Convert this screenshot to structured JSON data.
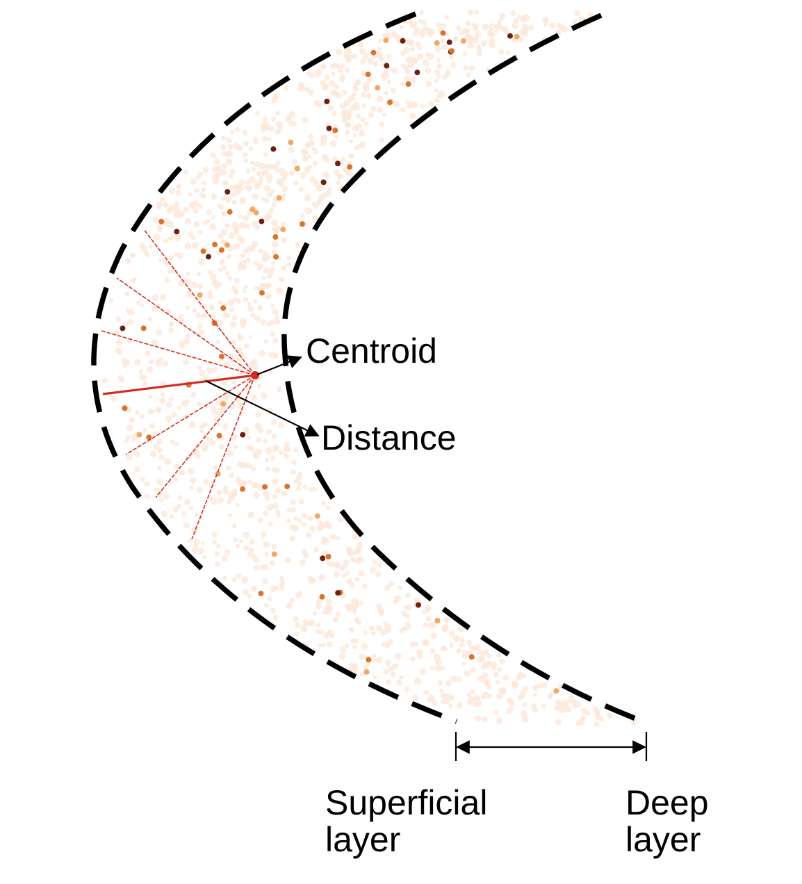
{
  "labels": {
    "centroid": "Centroid",
    "distance": "Distance",
    "superficial_line1": "Superficial",
    "superficial_line2": "layer",
    "deep_line1": "Deep",
    "deep_line2": "layer"
  },
  "colors": {
    "boundary": "#000000",
    "rays": "#d42a20",
    "centroid": "#d42a20",
    "background_cells": "#fbe9dc",
    "cells_light": "#f0a866",
    "cells_mid": "#d9742e",
    "cells_dark": "#6a2012"
  }
}
